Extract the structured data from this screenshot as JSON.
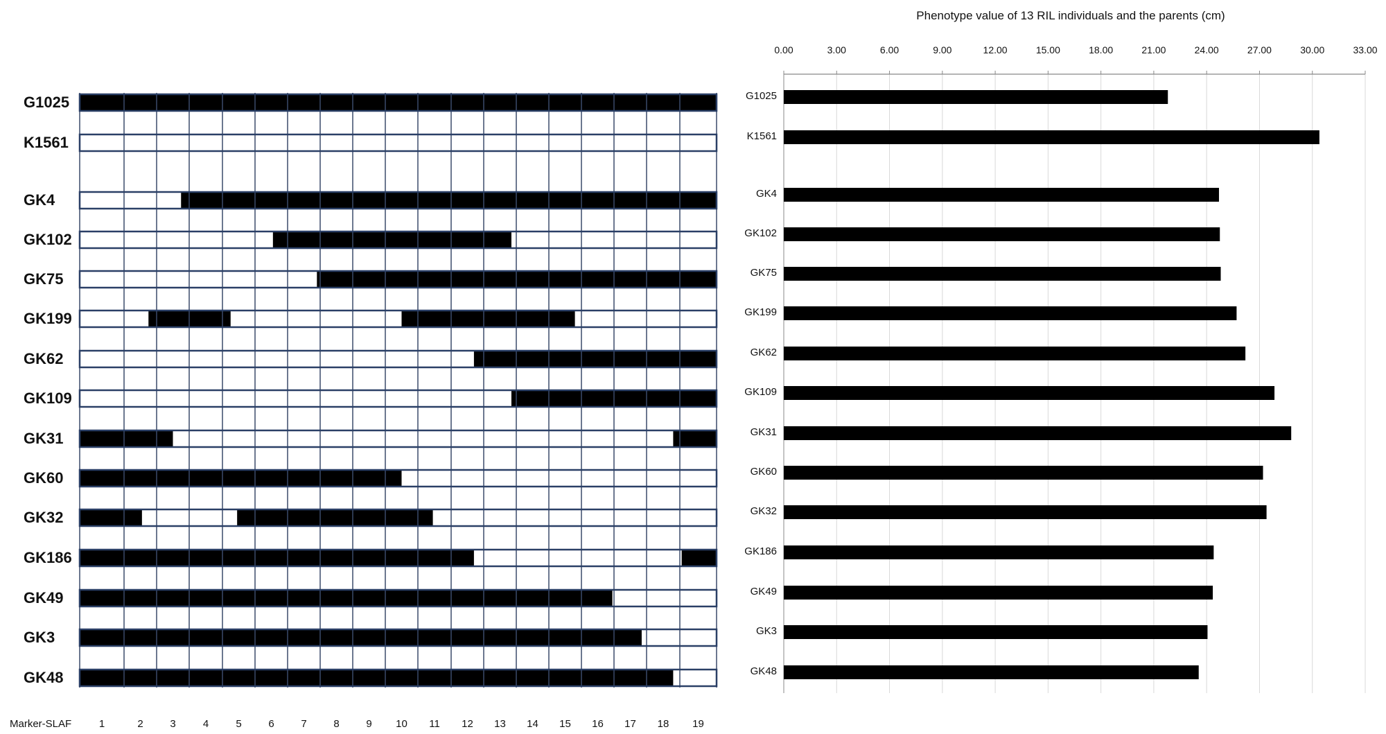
{
  "chart_data": [
    {
      "type": "heatmap",
      "xlabel": "Marker-SLAF",
      "marker_ticks": [
        "1",
        "2",
        "3",
        "4",
        "5",
        "6",
        "7",
        "8",
        "9",
        "10",
        "11",
        "12",
        "13",
        "14",
        "15",
        "16",
        "17",
        "18",
        "19"
      ],
      "rows": [
        {
          "name": "G1025",
          "segments": [
            [
              0,
              19
            ]
          ]
        },
        {
          "name": "K1561",
          "segments": []
        },
        {
          "name": "GK4",
          "segments": [
            [
              2.75,
              19
            ]
          ]
        },
        {
          "name": "GK102",
          "segments": [
            [
              5.55,
              12.85
            ]
          ]
        },
        {
          "name": "GK75",
          "segments": [
            [
              6.9,
              19
            ]
          ]
        },
        {
          "name": "GK199",
          "segments": [
            [
              1.75,
              4.25
            ],
            [
              9.5,
              14.8
            ]
          ]
        },
        {
          "name": "GK62",
          "segments": [
            [
              11.7,
              19
            ]
          ]
        },
        {
          "name": "GK109",
          "segments": [
            [
              12.85,
              19
            ]
          ]
        },
        {
          "name": "GK31",
          "segments": [
            [
              0,
              2.5
            ],
            [
              17.8,
              19
            ]
          ]
        },
        {
          "name": "GK60",
          "segments": [
            [
              0,
              9.5
            ]
          ]
        },
        {
          "name": "GK32",
          "segments": [
            [
              0,
              1.55
            ],
            [
              4.45,
              10.45
            ]
          ]
        },
        {
          "name": "GK186",
          "segments": [
            [
              0,
              11.7
            ],
            [
              18.05,
              19
            ]
          ]
        },
        {
          "name": "GK49",
          "segments": [
            [
              0,
              15.95
            ]
          ]
        },
        {
          "name": "GK3",
          "segments": [
            [
              0,
              16.85
            ]
          ]
        },
        {
          "name": "GK48",
          "segments": [
            [
              0,
              17.8
            ]
          ]
        }
      ]
    },
    {
      "type": "bar",
      "orientation": "horizontal",
      "title": "Phenotype value of 13 RIL individuals and the parents (cm)",
      "categories": [
        "G1025",
        "K1561",
        "GK4",
        "GK102",
        "GK75",
        "GK199",
        "GK62",
        "GK109",
        "GK31",
        "GK60",
        "GK32",
        "GK186",
        "GK49",
        "GK3",
        "GK48"
      ],
      "values": [
        21.8,
        30.4,
        24.7,
        24.75,
        24.8,
        25.7,
        26.2,
        27.85,
        28.8,
        27.2,
        27.4,
        24.4,
        24.35,
        24.05,
        23.55
      ],
      "xlim": [
        0,
        33
      ],
      "xticks": [
        "0.00",
        "3.00",
        "6.00",
        "9.00",
        "12.00",
        "15.00",
        "18.00",
        "21.00",
        "24.00",
        "27.00",
        "30.00",
        "33.00"
      ],
      "grid": true,
      "bar_color": "#000000",
      "axis_position": "top"
    }
  ]
}
